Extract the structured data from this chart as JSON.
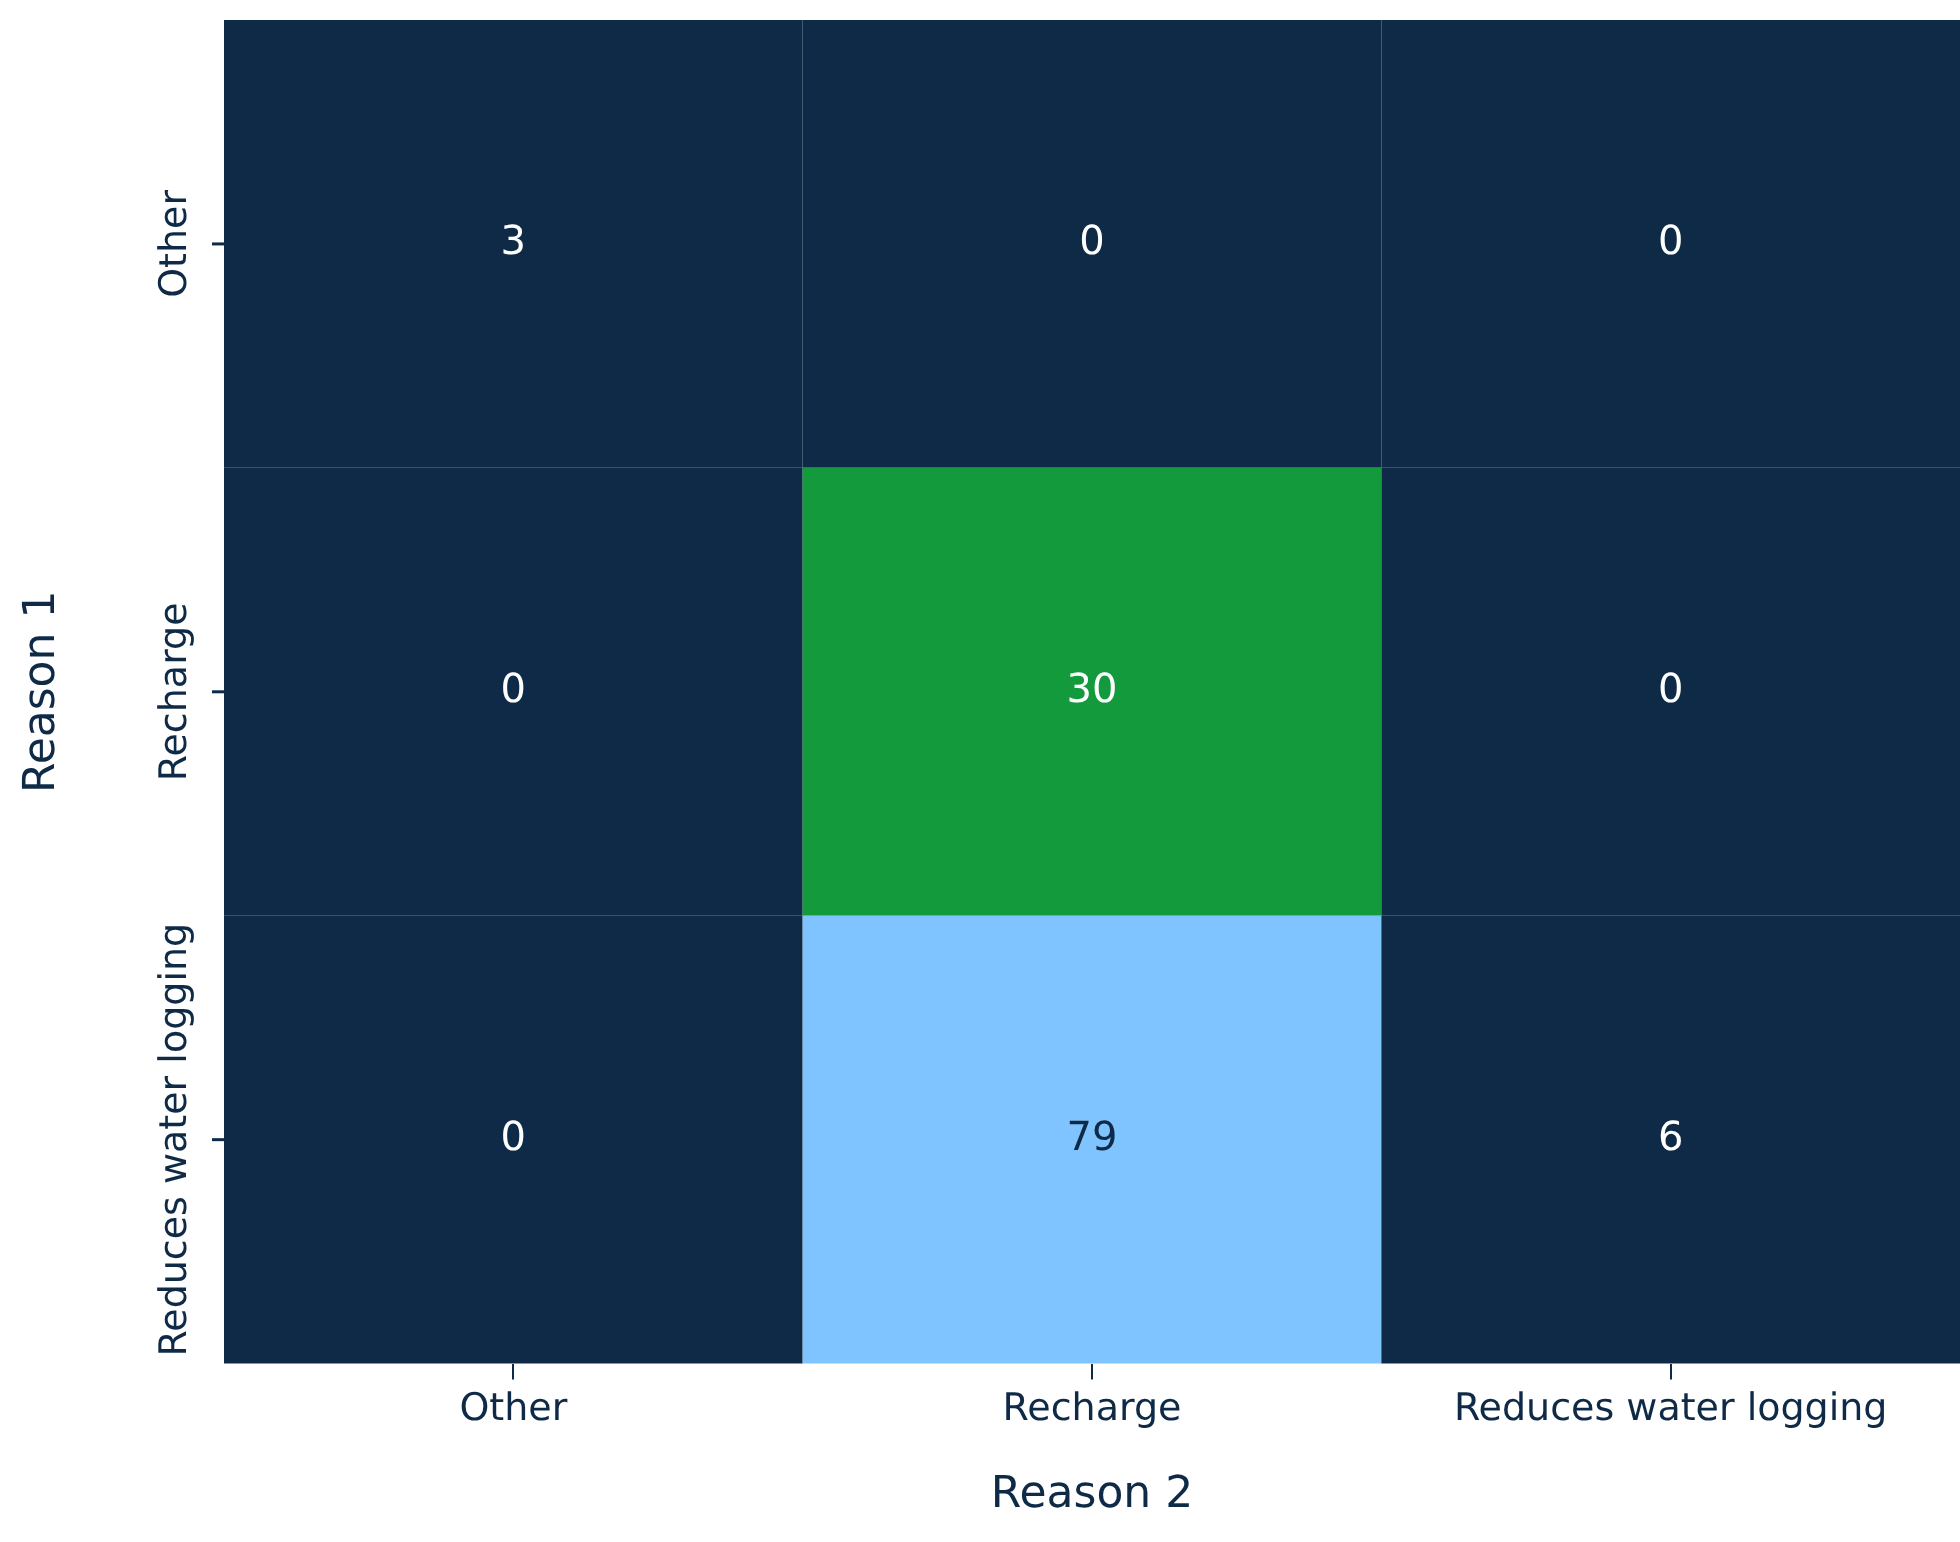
{
  "chart_data": {
    "type": "heatmap",
    "xlabel": "Reason 2",
    "ylabel": "Reason 1",
    "categories": [
      "Other",
      "Recharge",
      "Reduces water logging"
    ],
    "y_categories": [
      "Other",
      "Recharge",
      "Reduces water logging"
    ],
    "cells": [
      [
        3,
        0,
        0
      ],
      [
        0,
        30,
        0
      ],
      [
        0,
        79,
        6
      ]
    ],
    "colors": [
      "#0e2a47",
      "#129a3c",
      "#80c4ff"
    ],
    "data_labels": true
  }
}
